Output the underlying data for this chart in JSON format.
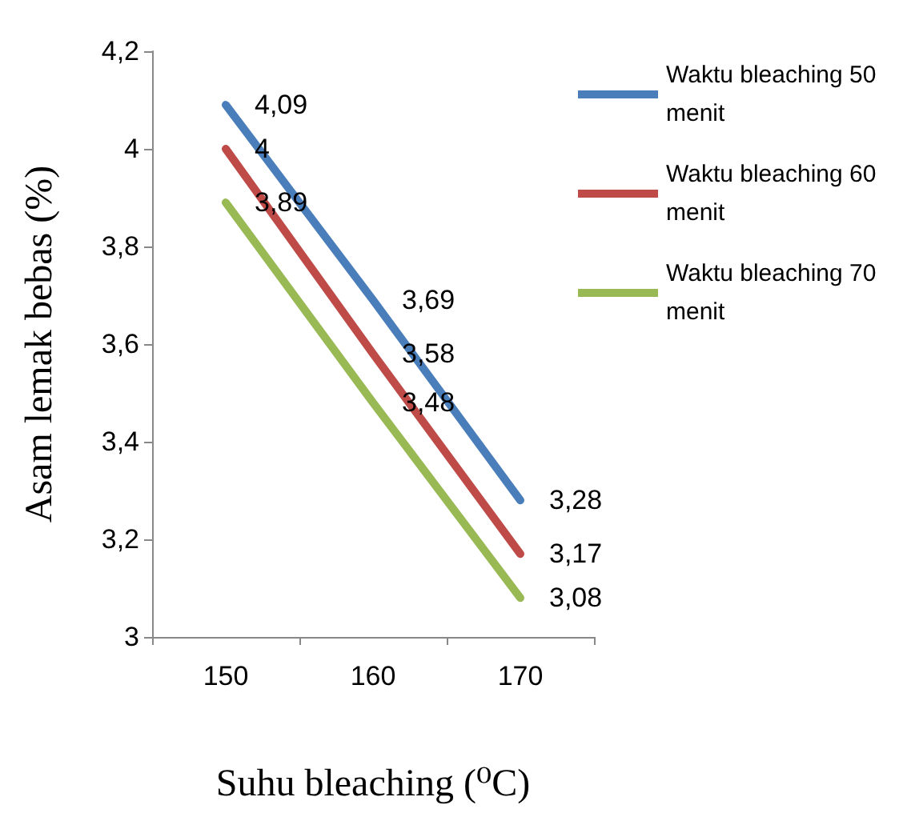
{
  "chart_data": {
    "type": "line",
    "xlabel": "Suhu bleaching (⁰C)",
    "ylabel": "Asam lemak bebas (%)",
    "categories": [
      "150",
      "160",
      "170"
    ],
    "series": [
      {
        "name": "Waktu bleaching 50 menit",
        "color": "#4a7ebb",
        "values": [
          4.09,
          3.69,
          3.28
        ],
        "value_labels": [
          "4,09",
          "3,69",
          "3,28"
        ]
      },
      {
        "name": "Waktu bleaching 60 menit",
        "color": "#be4b48",
        "values": [
          4.0,
          3.58,
          3.17
        ],
        "value_labels": [
          "4",
          "3,58",
          "3,17"
        ]
      },
      {
        "name": "Waktu bleaching 70 menit",
        "color": "#98b954",
        "values": [
          3.89,
          3.48,
          3.08
        ],
        "value_labels": [
          "3,89",
          "3,48",
          "3,08"
        ]
      }
    ],
    "ylim": [
      3,
      4.2
    ],
    "yticks": [
      {
        "value": 3,
        "label": "3"
      },
      {
        "value": 3.2,
        "label": "3,2"
      },
      {
        "value": 3.4,
        "label": "3,4"
      },
      {
        "value": 3.6,
        "label": "3,6"
      },
      {
        "value": 3.8,
        "label": "3,8"
      },
      {
        "value": 4,
        "label": "4"
      },
      {
        "value": 4.2,
        "label": "4,2"
      }
    ],
    "grid": false,
    "legend": "top right",
    "marker": "none",
    "line_style": "solid"
  }
}
